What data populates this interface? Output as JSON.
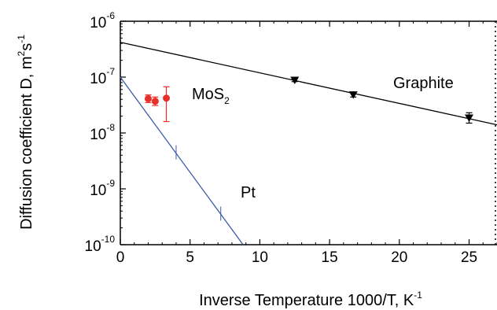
{
  "chart_data": {
    "type": "scatter",
    "xlabel": "Inverse Temperature 1000/T, K",
    "xlabel_exponent": "-1",
    "ylabel": "Diffusion coefficient D, m",
    "ylabel_sup1": "2",
    "ylabel_mid": "s",
    "ylabel_sup2": "-1",
    "xlim": [
      0,
      27
    ],
    "ylim": [
      1e-10,
      1e-06
    ],
    "yscale": "log",
    "grid": false,
    "legend": "none",
    "x_ticks": [
      0,
      5,
      10,
      15,
      20,
      25
    ],
    "y_ticks": [
      {
        "value": 1e-06,
        "base": "10",
        "exp": "-6"
      },
      {
        "value": 1e-07,
        "base": "10",
        "exp": "-7"
      },
      {
        "value": 1e-08,
        "base": "10",
        "exp": "-8"
      },
      {
        "value": 1e-09,
        "base": "10",
        "exp": "-9"
      },
      {
        "value": 1e-10,
        "base": "10",
        "exp": "-10"
      }
    ],
    "series": [
      {
        "name": "Graphite",
        "color": "#000000",
        "marker": "triangle-down",
        "points": [
          {
            "x": 12.5,
            "y": 8.8e-08,
            "err_low": 8.3e-08,
            "err_high": 9.3e-08
          },
          {
            "x": 16.7,
            "y": 4.8e-08,
            "err_low": 4.4e-08,
            "err_high": 5.4e-08
          },
          {
            "x": 25.0,
            "y": 1.85e-08,
            "err_low": 1.5e-08,
            "err_high": 2.3e-08
          }
        ],
        "fit": {
          "x": [
            0,
            27
          ],
          "y": [
            4.2e-07,
            1.4e-08
          ]
        }
      },
      {
        "name": "MoS",
        "name_sub": "2",
        "color": "#e8302a",
        "marker": "circle",
        "points": [
          {
            "x": 2.0,
            "y": 4.1e-08,
            "err_low": 3.5e-08,
            "err_high": 4.8e-08
          },
          {
            "x": 2.5,
            "y": 3.7e-08,
            "err_low": 3.1e-08,
            "err_high": 4.4e-08
          },
          {
            "x": 3.3,
            "y": 4.2e-08,
            "err_low": 1.6e-08,
            "err_high": 6.7e-08
          }
        ]
      },
      {
        "name": "Pt",
        "color": "#3a5ba8",
        "marker": "tick",
        "points": [
          {
            "x": 4.0,
            "y": 4.5e-09
          },
          {
            "x": 7.2,
            "y": 3.6e-10
          }
        ],
        "fit": {
          "x": [
            0,
            8.8
          ],
          "y": [
            1e-07,
            1e-10
          ]
        }
      }
    ],
    "annotations": [
      {
        "series": "Graphite",
        "text": "Graphite"
      },
      {
        "series": "MoS",
        "text": "MoS",
        "sub": "2"
      },
      {
        "series": "Pt",
        "text": "Pt"
      }
    ]
  }
}
